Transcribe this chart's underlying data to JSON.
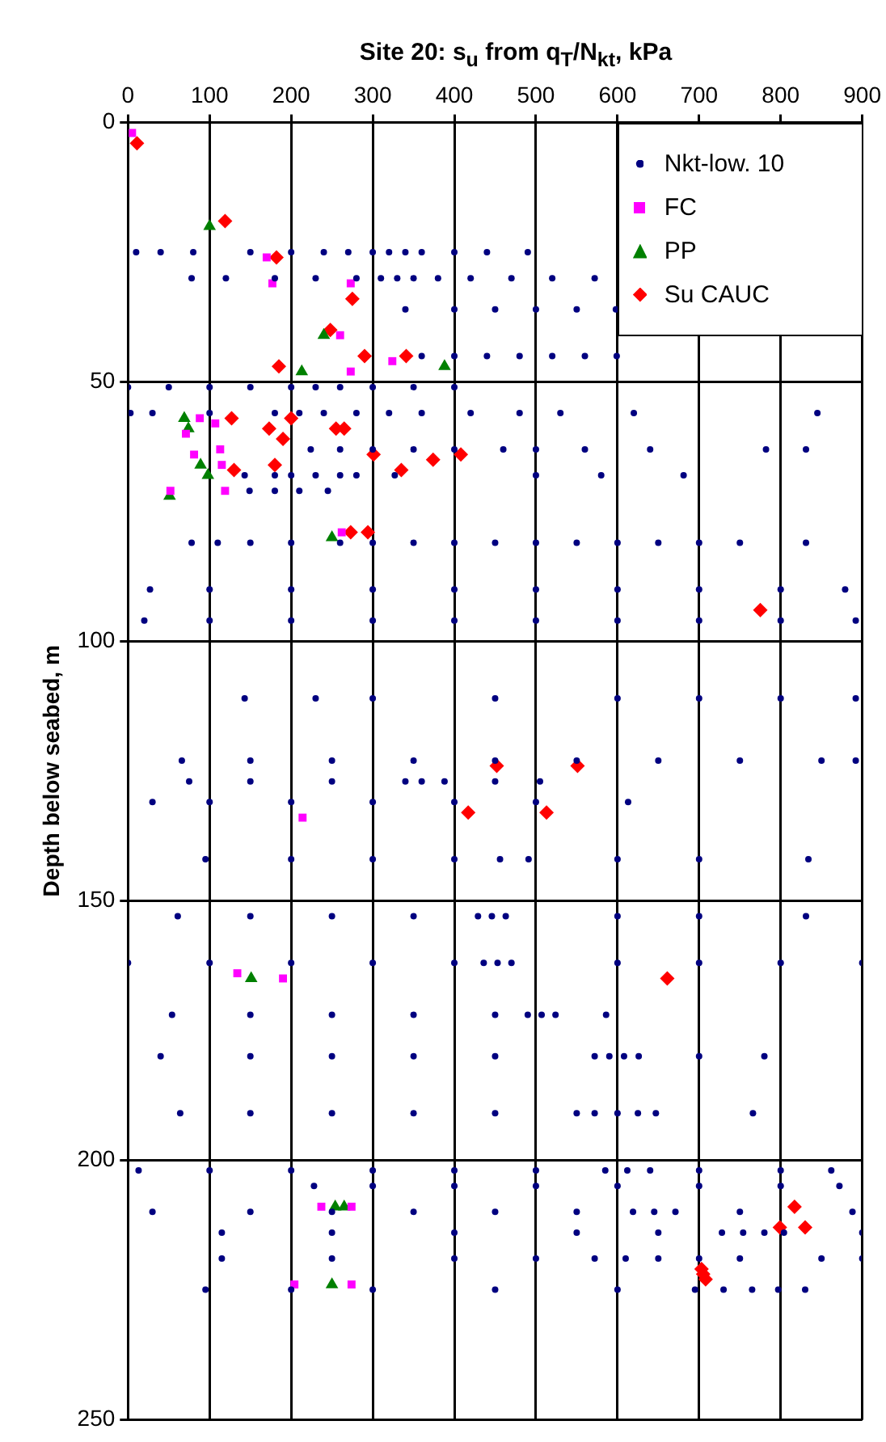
{
  "chart_data": {
    "type": "scatter",
    "title": "Site 20: s$_{u}$ from q$_{T}$/N$_{kt}$, kPa",
    "ylabel": "Depth below seabed, m",
    "xlim": [
      0,
      900
    ],
    "xticks": [
      0,
      100,
      200,
      300,
      400,
      500,
      600,
      700,
      800,
      900
    ],
    "ylim": [
      250,
      0
    ],
    "yticks": [
      0,
      50,
      100,
      150,
      200,
      250
    ],
    "grid": true,
    "legend": "top right",
    "series": [
      {
        "name": "Nkt-low. 10",
        "color": "#000080",
        "marker": "circle",
        "x": [
          10,
          40,
          80,
          150,
          200,
          240,
          270,
          300,
          320,
          340,
          360,
          400,
          440,
          490,
          78,
          120,
          180,
          230,
          280,
          310,
          330,
          350,
          380,
          420,
          470,
          520,
          572,
          340,
          400,
          450,
          500,
          550,
          598,
          360,
          400,
          440,
          480,
          520,
          560,
          599,
          0,
          50,
          100,
          150,
          200,
          230,
          260,
          300,
          350,
          400,
          3,
          30,
          100,
          180,
          210,
          240,
          280,
          320,
          360,
          420,
          480,
          530,
          620,
          845,
          224,
          260,
          300,
          350,
          400,
          460,
          500,
          560,
          640,
          782,
          831,
          143,
          180,
          200,
          230,
          260,
          280,
          327,
          500,
          580,
          681,
          149,
          180,
          210,
          245,
          78,
          110,
          150,
          200,
          260,
          300,
          350,
          400,
          450,
          500,
          550,
          600,
          650,
          700,
          750,
          831,
          27,
          100,
          200,
          300,
          400,
          500,
          600,
          700,
          800,
          879,
          20,
          100,
          200,
          300,
          400,
          500,
          600,
          700,
          800,
          892,
          143,
          230,
          300,
          450,
          600,
          700,
          800,
          892,
          66,
          150,
          250,
          350,
          450,
          550,
          650,
          750,
          850,
          892,
          75,
          150,
          250,
          340,
          360,
          388,
          450,
          505,
          30,
          100,
          200,
          300,
          400,
          500,
          613,
          95,
          200,
          300,
          400,
          456,
          491,
          600,
          700,
          834,
          61,
          150,
          250,
          350,
          429,
          446,
          463,
          600,
          700,
          831,
          0,
          100,
          200,
          300,
          400,
          436,
          453,
          470,
          600,
          700,
          800,
          900,
          54,
          150,
          250,
          350,
          450,
          490,
          507,
          524,
          586,
          40,
          150,
          250,
          350,
          450,
          572,
          590,
          608,
          626,
          700,
          780,
          64,
          150,
          250,
          350,
          450,
          550,
          572,
          600,
          625,
          647,
          766,
          13,
          100,
          200,
          300,
          400,
          500,
          585,
          612,
          640,
          700,
          800,
          862,
          228,
          300,
          400,
          500,
          600,
          700,
          800,
          872,
          30,
          150,
          250,
          350,
          450,
          550,
          619,
          645,
          671,
          750,
          888,
          115,
          250,
          400,
          550,
          650,
          728,
          754,
          780,
          804,
          900,
          115,
          250,
          400,
          500,
          572,
          610,
          650,
          700,
          750,
          850,
          900,
          95,
          200,
          300,
          450,
          600,
          695,
          730,
          765,
          797,
          830
        ],
        "values": [
          25,
          25,
          25,
          25,
          25,
          25,
          25,
          25,
          25,
          25,
          25,
          25,
          25,
          25,
          30,
          30,
          30,
          30,
          30,
          30,
          30,
          30,
          30,
          30,
          30,
          30,
          30,
          36,
          36,
          36,
          36,
          36,
          36,
          45,
          45,
          45,
          45,
          45,
          45,
          45,
          51,
          51,
          51,
          51,
          51,
          51,
          51,
          51,
          51,
          51,
          56,
          56,
          56,
          56,
          56,
          56,
          56,
          56,
          56,
          56,
          56,
          56,
          56,
          56,
          63,
          63,
          63,
          63,
          63,
          63,
          63,
          63,
          63,
          63,
          63,
          68,
          68,
          68,
          68,
          68,
          68,
          68,
          68,
          68,
          68,
          71,
          71,
          71,
          71,
          81,
          81,
          81,
          81,
          81,
          81,
          81,
          81,
          81,
          81,
          81,
          81,
          81,
          81,
          81,
          81,
          90,
          90,
          90,
          90,
          90,
          90,
          90,
          90,
          90,
          90,
          96,
          96,
          96,
          96,
          96,
          96,
          96,
          96,
          96,
          96,
          111,
          111,
          111,
          111,
          111,
          111,
          111,
          111,
          123,
          123,
          123,
          123,
          123,
          123,
          123,
          123,
          123,
          123,
          127,
          127,
          127,
          127,
          127,
          127,
          127,
          127,
          131,
          131,
          131,
          131,
          131,
          131,
          131,
          142,
          142,
          142,
          142,
          142,
          142,
          142,
          142,
          142,
          153,
          153,
          153,
          153,
          153,
          153,
          153,
          153,
          153,
          153,
          162,
          162,
          162,
          162,
          162,
          162,
          162,
          162,
          162,
          162,
          162,
          162,
          172,
          172,
          172,
          172,
          172,
          172,
          172,
          172,
          172,
          180,
          180,
          180,
          180,
          180,
          180,
          180,
          180,
          180,
          180,
          180,
          191,
          191,
          191,
          191,
          191,
          191,
          191,
          191,
          191,
          191,
          191,
          202,
          202,
          202,
          202,
          202,
          202,
          202,
          202,
          202,
          202,
          202,
          202,
          205,
          205,
          205,
          205,
          205,
          205,
          205,
          205,
          210,
          210,
          210,
          210,
          210,
          210,
          210,
          210,
          210,
          210,
          210,
          214,
          214,
          214,
          214,
          214,
          214,
          214,
          214,
          214,
          214,
          219,
          219,
          219,
          219,
          219,
          219,
          219,
          219,
          219,
          219,
          219,
          225,
          225,
          225,
          225,
          225,
          225,
          225,
          225,
          225,
          225
        ]
      },
      {
        "name": "FC",
        "color": "#ff00ff",
        "marker": "square",
        "x": [
          5,
          170,
          177,
          273,
          260,
          324,
          273,
          88,
          107,
          71,
          81,
          113,
          115,
          119,
          52,
          262,
          214,
          134,
          190,
          237,
          274,
          204,
          274
        ],
        "values": [
          2,
          26,
          31,
          31,
          41,
          46,
          48,
          57,
          58,
          60,
          64,
          63,
          66,
          71,
          71,
          79,
          134,
          164,
          165,
          209,
          209,
          224,
          224
        ]
      },
      {
        "name": "PP",
        "color": "#008000",
        "marker": "triangle",
        "x": [
          100,
          240,
          213,
          388,
          69,
          74,
          89,
          98,
          51,
          250,
          151,
          254,
          265,
          250
        ],
        "values": [
          20,
          41,
          48,
          47,
          57,
          59,
          66,
          68,
          72,
          80,
          165,
          209,
          209,
          224
        ]
      },
      {
        "name": "Su CAUC",
        "color": "#ff0000",
        "marker": "diamond",
        "x": [
          11,
          119,
          182,
          275,
          248,
          185,
          290,
          341,
          127,
          200,
          173,
          255,
          265,
          190,
          301,
          408,
          374,
          335,
          180,
          130,
          273,
          294,
          775,
          452,
          551,
          417,
          513,
          661,
          817,
          799,
          830,
          703,
          705,
          708
        ],
        "values": [
          4,
          19,
          26,
          34,
          40,
          47,
          45,
          45,
          57,
          57,
          59,
          59,
          59,
          61,
          64,
          64,
          65,
          67,
          66,
          67,
          79,
          79,
          94,
          124,
          124,
          133,
          133,
          165,
          209,
          213,
          213,
          221,
          222,
          223
        ]
      }
    ]
  }
}
